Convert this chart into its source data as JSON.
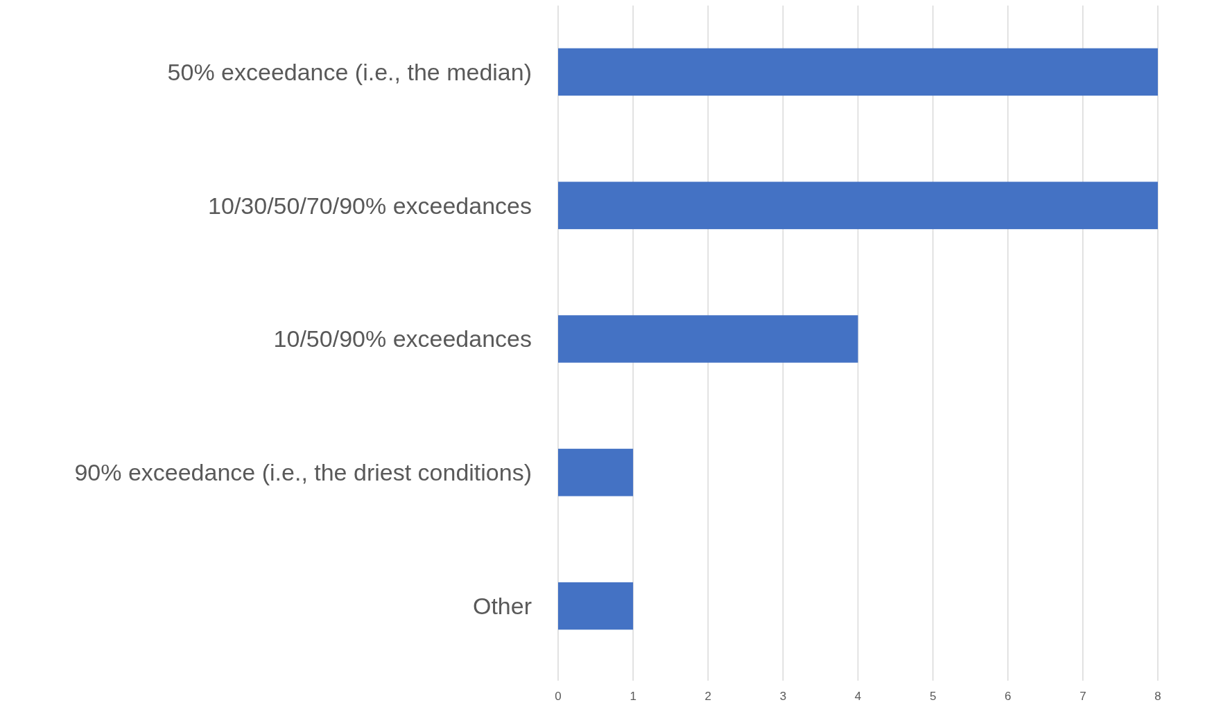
{
  "chart_data": {
    "type": "bar",
    "orientation": "horizontal",
    "categories": [
      "50% exceedance (i.e., the median)",
      "10/30/50/70/90% exceedances",
      "10/50/90% exceedances",
      "90% exceedance (i.e., the driest conditions)",
      "Other"
    ],
    "values": [
      8,
      8,
      4,
      1,
      1
    ],
    "color": "#4472c4",
    "xlim": [
      0,
      8
    ],
    "xticks": [
      0,
      1,
      2,
      3,
      4,
      5,
      6,
      7,
      8
    ],
    "grid": "x"
  }
}
